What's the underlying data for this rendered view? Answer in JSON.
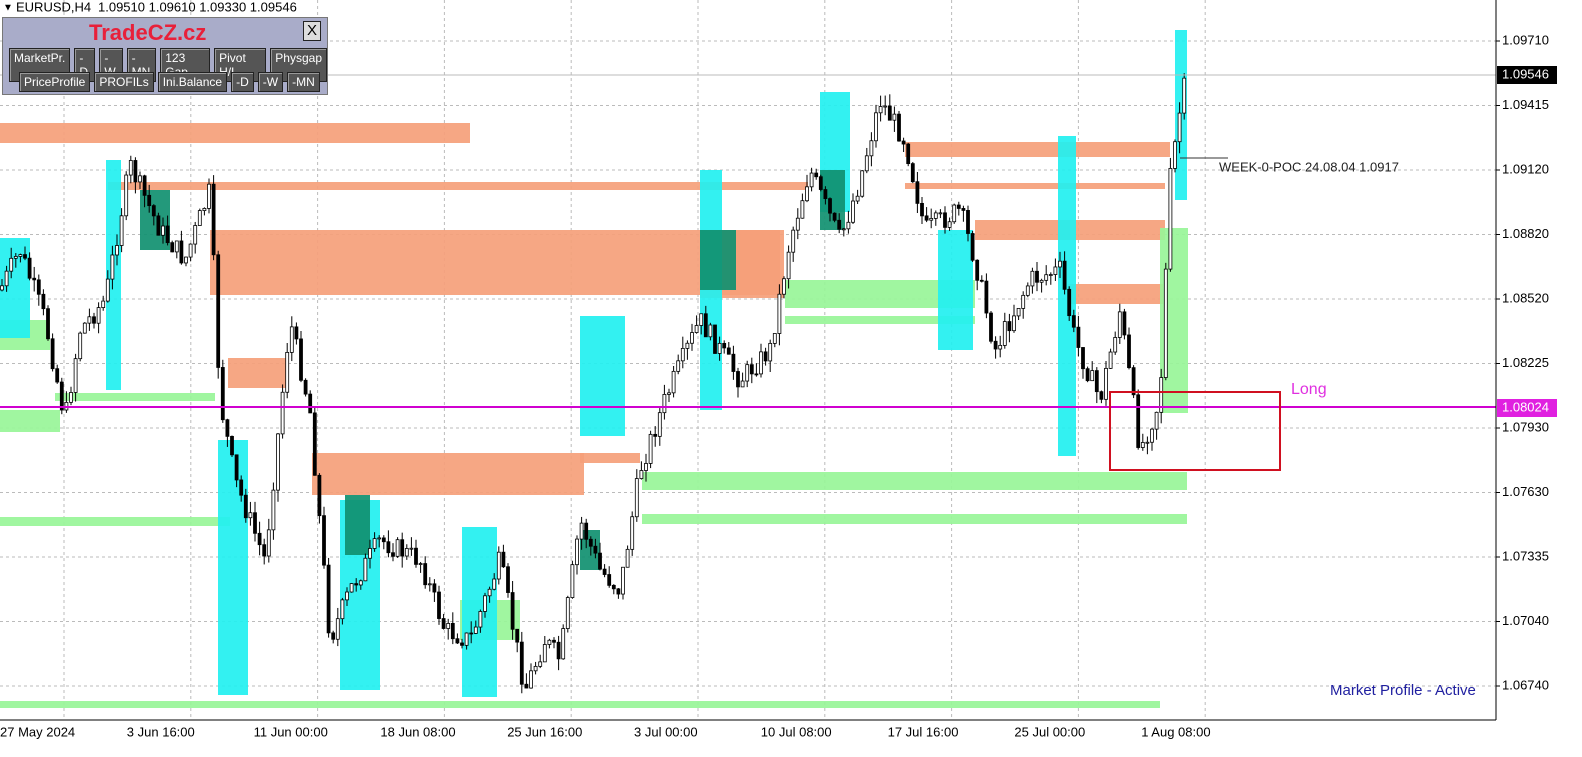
{
  "header": {
    "symbol": "EURUSD,H4",
    "ohlc": "1.09510 1.09610 1.09330 1.09546"
  },
  "panel": {
    "title": "TradeCZ.cz",
    "close": "X",
    "buttons_row1": [
      "MarketPr.",
      "-D",
      "-W",
      "-MN",
      "123 Gap",
      "Pivot H/L",
      "Physgap"
    ],
    "buttons_row2": [
      "PriceProfile",
      "PROFILs",
      "Ini.Balance",
      "-D",
      "-W",
      "-MN"
    ]
  },
  "price_axis": {
    "labels": [
      "1.09710",
      "1.09415",
      "1.09120",
      "1.08820",
      "1.08520",
      "1.08225",
      "1.07930",
      "1.07630",
      "1.07335",
      "1.07040",
      "1.06740"
    ],
    "current_price": "1.09546",
    "line_price": "1.08024"
  },
  "time_axis": {
    "labels": [
      "27 May 2024",
      "3 Jun 16:00",
      "11 Jun 00:00",
      "18 Jun 08:00",
      "25 Jun 16:00",
      "3 Jul 00:00",
      "10 Jul 08:00",
      "17 Jul 16:00",
      "25 Jul 00:00",
      "1 Aug 08:00"
    ]
  },
  "annotations": {
    "poc": "WEEK-0-POC 24.08.04 1.0917",
    "long": "Long",
    "status": "Market Profile - Active"
  }
}
